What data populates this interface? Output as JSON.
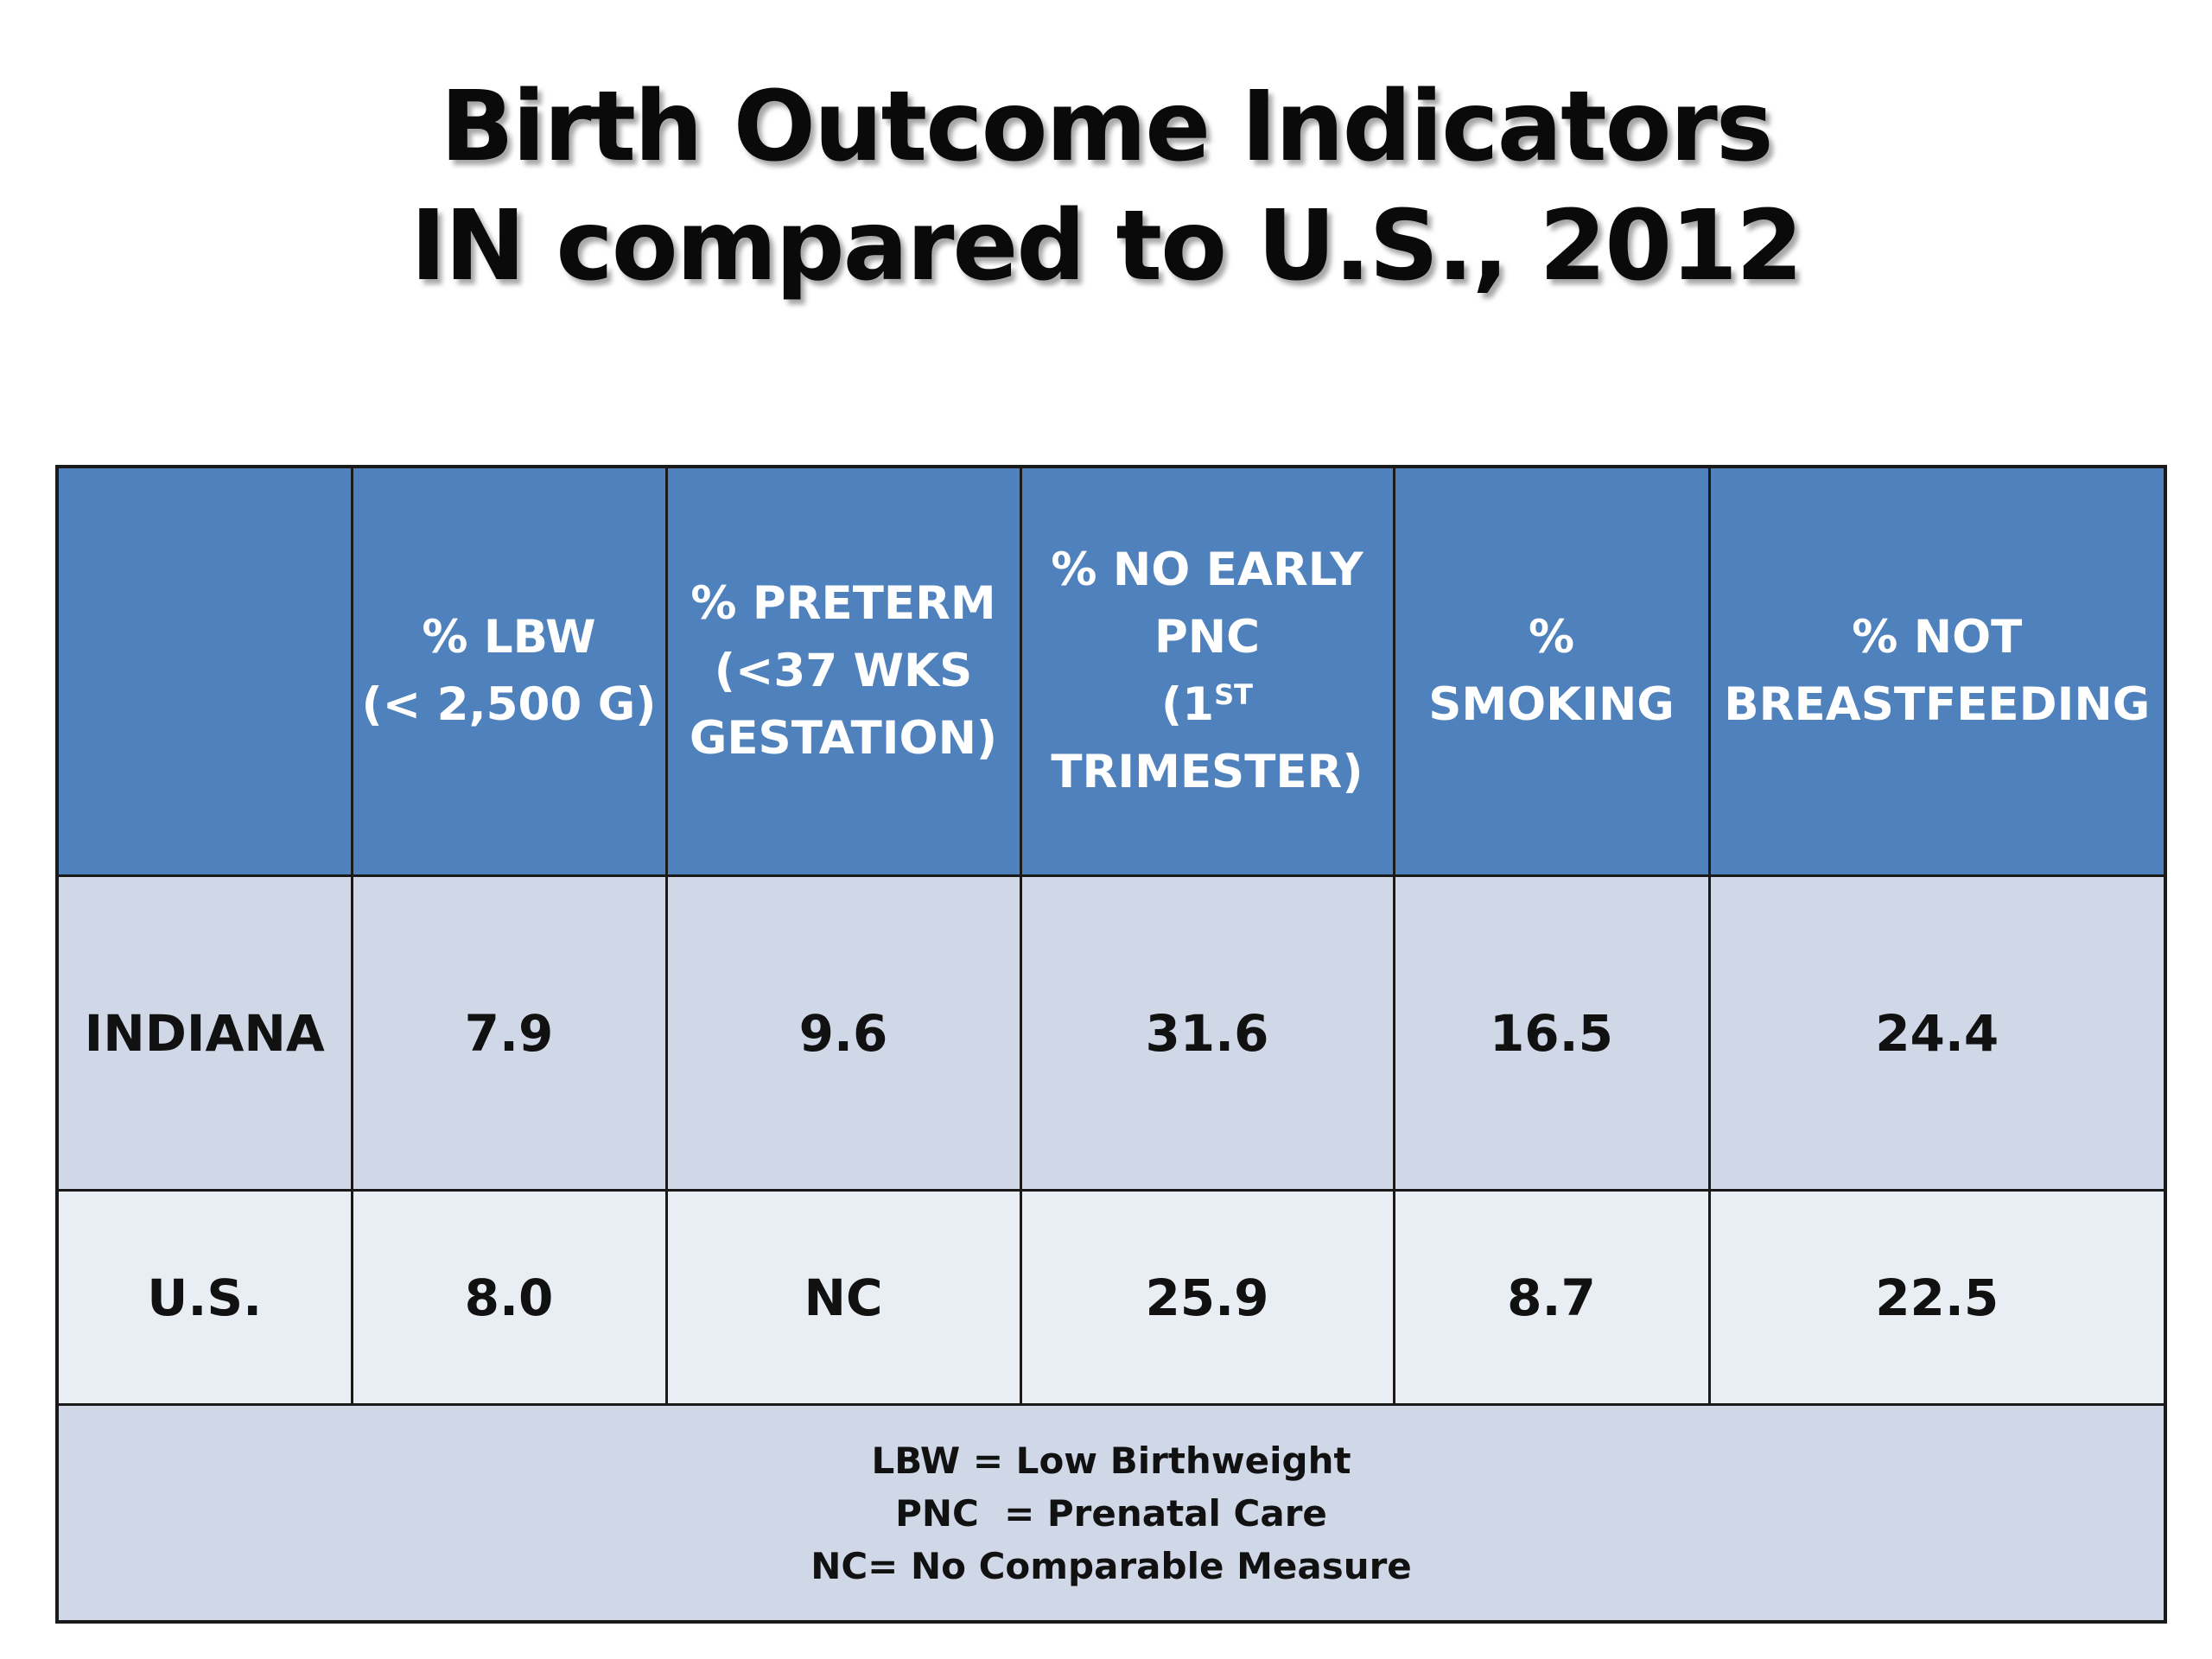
{
  "title": {
    "line1": "Birth Outcome Indicators",
    "line2": "IN compared to U.S., 2012"
  },
  "table": {
    "headers": {
      "blank": "",
      "lbw": [
        "% LBW",
        "(< 2,500 G)"
      ],
      "preterm": [
        "% PRETERM",
        "(<37 WKS",
        "GESTATION)"
      ],
      "pnc": {
        "line1": "% NO EARLY",
        "line2": "PNC",
        "line3_pre": "(1",
        "line3_sup": "ST",
        "line4": "TRIMESTER)"
      },
      "smoking": [
        "%",
        "SMOKING"
      ],
      "breastfeeding": [
        "% NOT",
        "BREASTFEEDING"
      ]
    },
    "rows": [
      {
        "label": "INDIANA",
        "lbw": "7.9",
        "preterm": "9.6",
        "pnc": "31.6",
        "smoking": "16.5",
        "breastfeeding": "24.4"
      },
      {
        "label": "U.S.",
        "lbw": "8.0",
        "preterm": "NC",
        "pnc": "25.9",
        "smoking": "8.7",
        "breastfeeding": "22.5"
      }
    ],
    "notes": [
      "LBW = Low Birthweight",
      "PNC  = Prenatal Care",
      "NC= No Comparable Measure"
    ]
  },
  "colors": {
    "header_bg": "#4f81bd",
    "row_indiana_bg": "#d0d8e8",
    "row_us_bg": "#e9edf4",
    "notes_bg": "#d0d8e8"
  }
}
